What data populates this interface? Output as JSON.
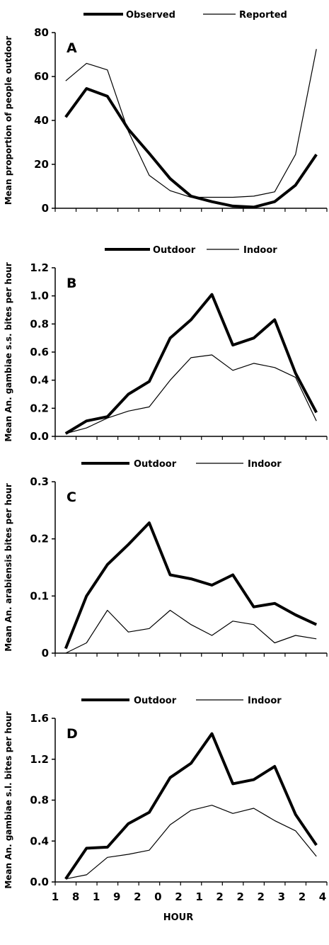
{
  "x_tick_labels": [
    "1",
    "8",
    "1",
    "9",
    "2",
    "0",
    "2",
    "1",
    "2",
    "2",
    "2",
    "3",
    "2",
    "4"
  ],
  "x_title": "HOUR",
  "chart_data": [
    {
      "type": "line",
      "panel_label": "A",
      "ylabel": "Mean proportion of people outdoor",
      "ylim": [
        0,
        80
      ],
      "y_ticks": [
        "0",
        "20",
        "40",
        "60",
        "80"
      ],
      "x_points": 13,
      "series": [
        {
          "name": "Observed",
          "style": "thick",
          "values": [
            41.5,
            54.5,
            51,
            36,
            25,
            13.5,
            5.5,
            3,
            1,
            0.5,
            3,
            10.5,
            24.5
          ]
        },
        {
          "name": "Reported",
          "style": "thin",
          "values": [
            58,
            66,
            63,
            35,
            15,
            8,
            5,
            5,
            5,
            5.5,
            7.5,
            24.5,
            72.5
          ]
        }
      ]
    },
    {
      "type": "line",
      "panel_label": "B",
      "ylabel": "Mean An. gambiae s.s. bites per hour",
      "ylim": [
        0,
        1.2
      ],
      "y_ticks": [
        "0.0",
        "0.2",
        "0.4",
        "0.6",
        "0.8",
        "1.0",
        "1.2"
      ],
      "x_points": 13,
      "series": [
        {
          "name": "Outdoor",
          "style": "thick",
          "values": [
            0.02,
            0.11,
            0.14,
            0.3,
            0.39,
            0.7,
            0.83,
            1.01,
            0.65,
            0.7,
            0.83,
            0.45,
            0.17
          ]
        },
        {
          "name": "Indoor",
          "style": "thin",
          "values": [
            0.02,
            0.06,
            0.13,
            0.18,
            0.21,
            0.4,
            0.56,
            0.58,
            0.47,
            0.52,
            0.49,
            0.42,
            0.11
          ]
        }
      ]
    },
    {
      "type": "line",
      "panel_label": "C",
      "ylabel": "Mean An. arabiensis bites per hour",
      "ylim": [
        0,
        0.3
      ],
      "y_ticks": [
        "0",
        "0.1",
        "0.2",
        "0.3"
      ],
      "x_points": 13,
      "series": [
        {
          "name": "Outdoor",
          "style": "thick",
          "values": [
            0.008,
            0.1,
            0.155,
            0.19,
            0.228,
            0.137,
            0.13,
            0.119,
            0.137,
            0.081,
            0.087,
            0.067,
            0.05
          ]
        },
        {
          "name": "Indoor",
          "style": "thin",
          "values": [
            0,
            0.018,
            0.075,
            0.037,
            0.043,
            0.075,
            0.05,
            0.031,
            0.056,
            0.05,
            0.018,
            0.031,
            0.025
          ]
        }
      ]
    },
    {
      "type": "line",
      "panel_label": "D",
      "ylabel": "Mean An. gambiae s.l. bites per hour",
      "ylim": [
        0,
        1.6
      ],
      "y_ticks": [
        "0.0",
        "0.4",
        "0.8",
        "1.2",
        "1.6"
      ],
      "x_points": 13,
      "series": [
        {
          "name": "Outdoor",
          "style": "thick",
          "values": [
            0.03,
            0.33,
            0.34,
            0.57,
            0.68,
            1.02,
            1.16,
            1.45,
            0.96,
            1.0,
            1.13,
            0.66,
            0.36
          ]
        },
        {
          "name": "Indoor",
          "style": "thin",
          "values": [
            0.03,
            0.07,
            0.24,
            0.27,
            0.31,
            0.56,
            0.7,
            0.75,
            0.67,
            0.72,
            0.6,
            0.5,
            0.25
          ]
        }
      ]
    }
  ]
}
